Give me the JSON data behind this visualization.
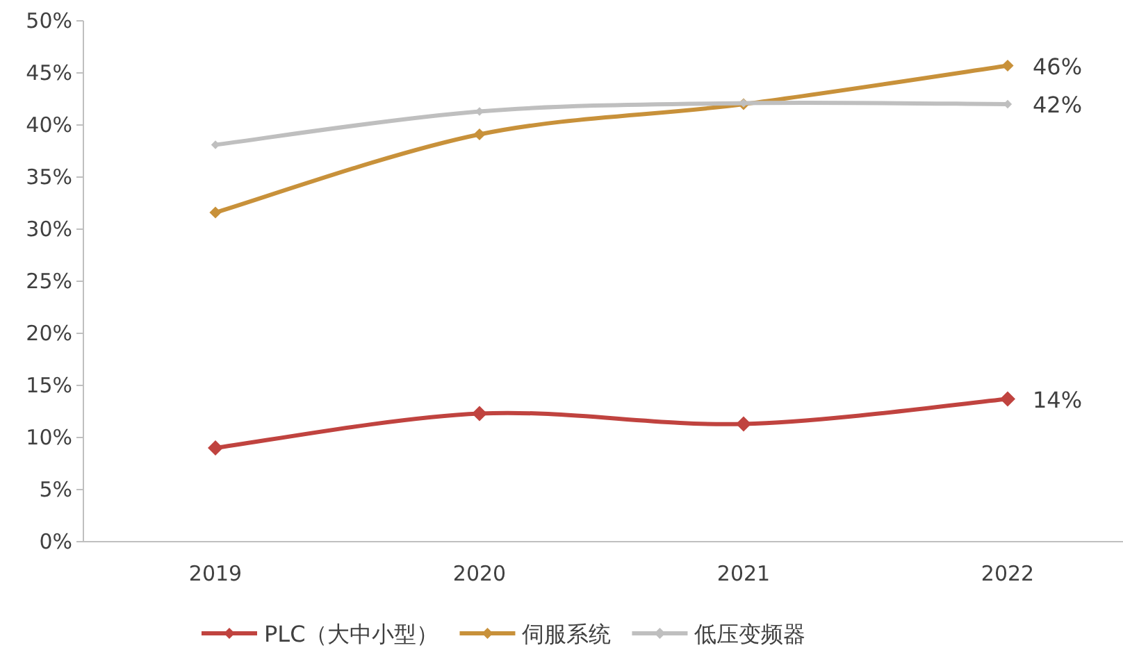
{
  "chart_data": {
    "type": "line",
    "categories": [
      "2019",
      "2020",
      "2021",
      "2022"
    ],
    "series": [
      {
        "name": "PLC（大中小型）",
        "color": "#c0433f",
        "values": [
          9,
          12.3,
          11.3,
          13.7
        ],
        "value_labels": [
          null,
          null,
          null,
          "14%"
        ]
      },
      {
        "name": "伺服系统",
        "color": "#c8913a",
        "values": [
          31.6,
          39.1,
          42,
          45.7
        ],
        "value_labels": [
          null,
          null,
          null,
          "46%"
        ]
      },
      {
        "name": "低压变频器",
        "color": "#bfbfbf",
        "values": [
          38.1,
          41.3,
          42.1,
          42
        ],
        "value_labels": [
          null,
          null,
          null,
          "42%"
        ]
      }
    ],
    "ylim": [
      0,
      50
    ],
    "yticks": [
      {
        "value": 0,
        "label": "0%"
      },
      {
        "value": 5,
        "label": "5%"
      },
      {
        "value": 10,
        "label": "10%"
      },
      {
        "value": 15,
        "label": "15%"
      },
      {
        "value": 20,
        "label": "20%"
      },
      {
        "value": 25,
        "label": "25%"
      },
      {
        "value": 30,
        "label": "30%"
      },
      {
        "value": 35,
        "label": "35%"
      },
      {
        "value": 40,
        "label": "40%"
      },
      {
        "value": 45,
        "label": "45%"
      },
      {
        "value": 50,
        "label": "50%"
      }
    ],
    "legend": "bottom",
    "marker": "diamond",
    "line_style": "solid"
  }
}
